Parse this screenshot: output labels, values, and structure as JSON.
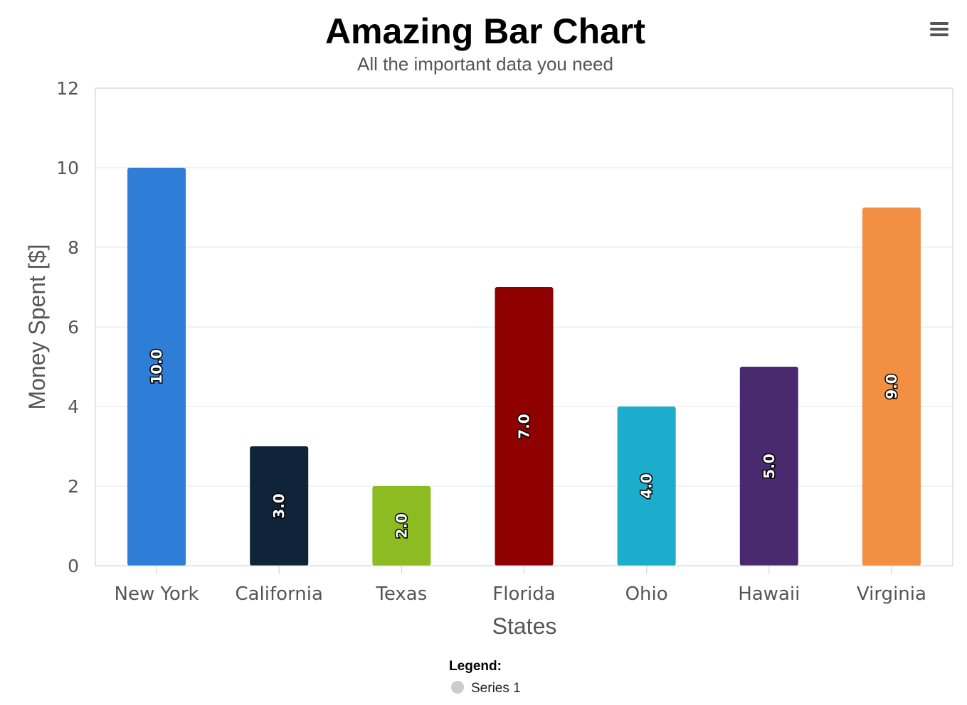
{
  "menu": {
    "icon": "hamburger-menu-icon",
    "color": "#555555"
  },
  "chart_data": {
    "type": "bar",
    "title": "Amazing Bar Chart",
    "subtitle": "All the important data you need",
    "xlabel": "States",
    "ylabel": "Money Spent [$]",
    "categories": [
      "New York",
      "California",
      "Texas",
      "Florida",
      "Ohio",
      "Hawaii",
      "Virginia"
    ],
    "series": [
      {
        "name": "Series 1",
        "values": [
          10.0,
          3.0,
          2.0,
          7.0,
          4.0,
          5.0,
          9.0
        ],
        "data_labels": [
          "10.0",
          "3.0",
          "2.0",
          "7.0",
          "4.0",
          "5.0",
          "9.0"
        ],
        "colors": [
          "#2e7ed8",
          "#0f2339",
          "#8cbb22",
          "#8f0000",
          "#1cadcd",
          "#4a2a6e",
          "#f28f43"
        ]
      }
    ],
    "ylim": [
      0,
      12
    ],
    "yticks": [
      "0",
      "2",
      "4",
      "6",
      "8",
      "10",
      "12"
    ],
    "grid": true,
    "legend": {
      "title": "Legend:",
      "placement": "bottom-center",
      "marker_color": "#cccccc"
    }
  }
}
